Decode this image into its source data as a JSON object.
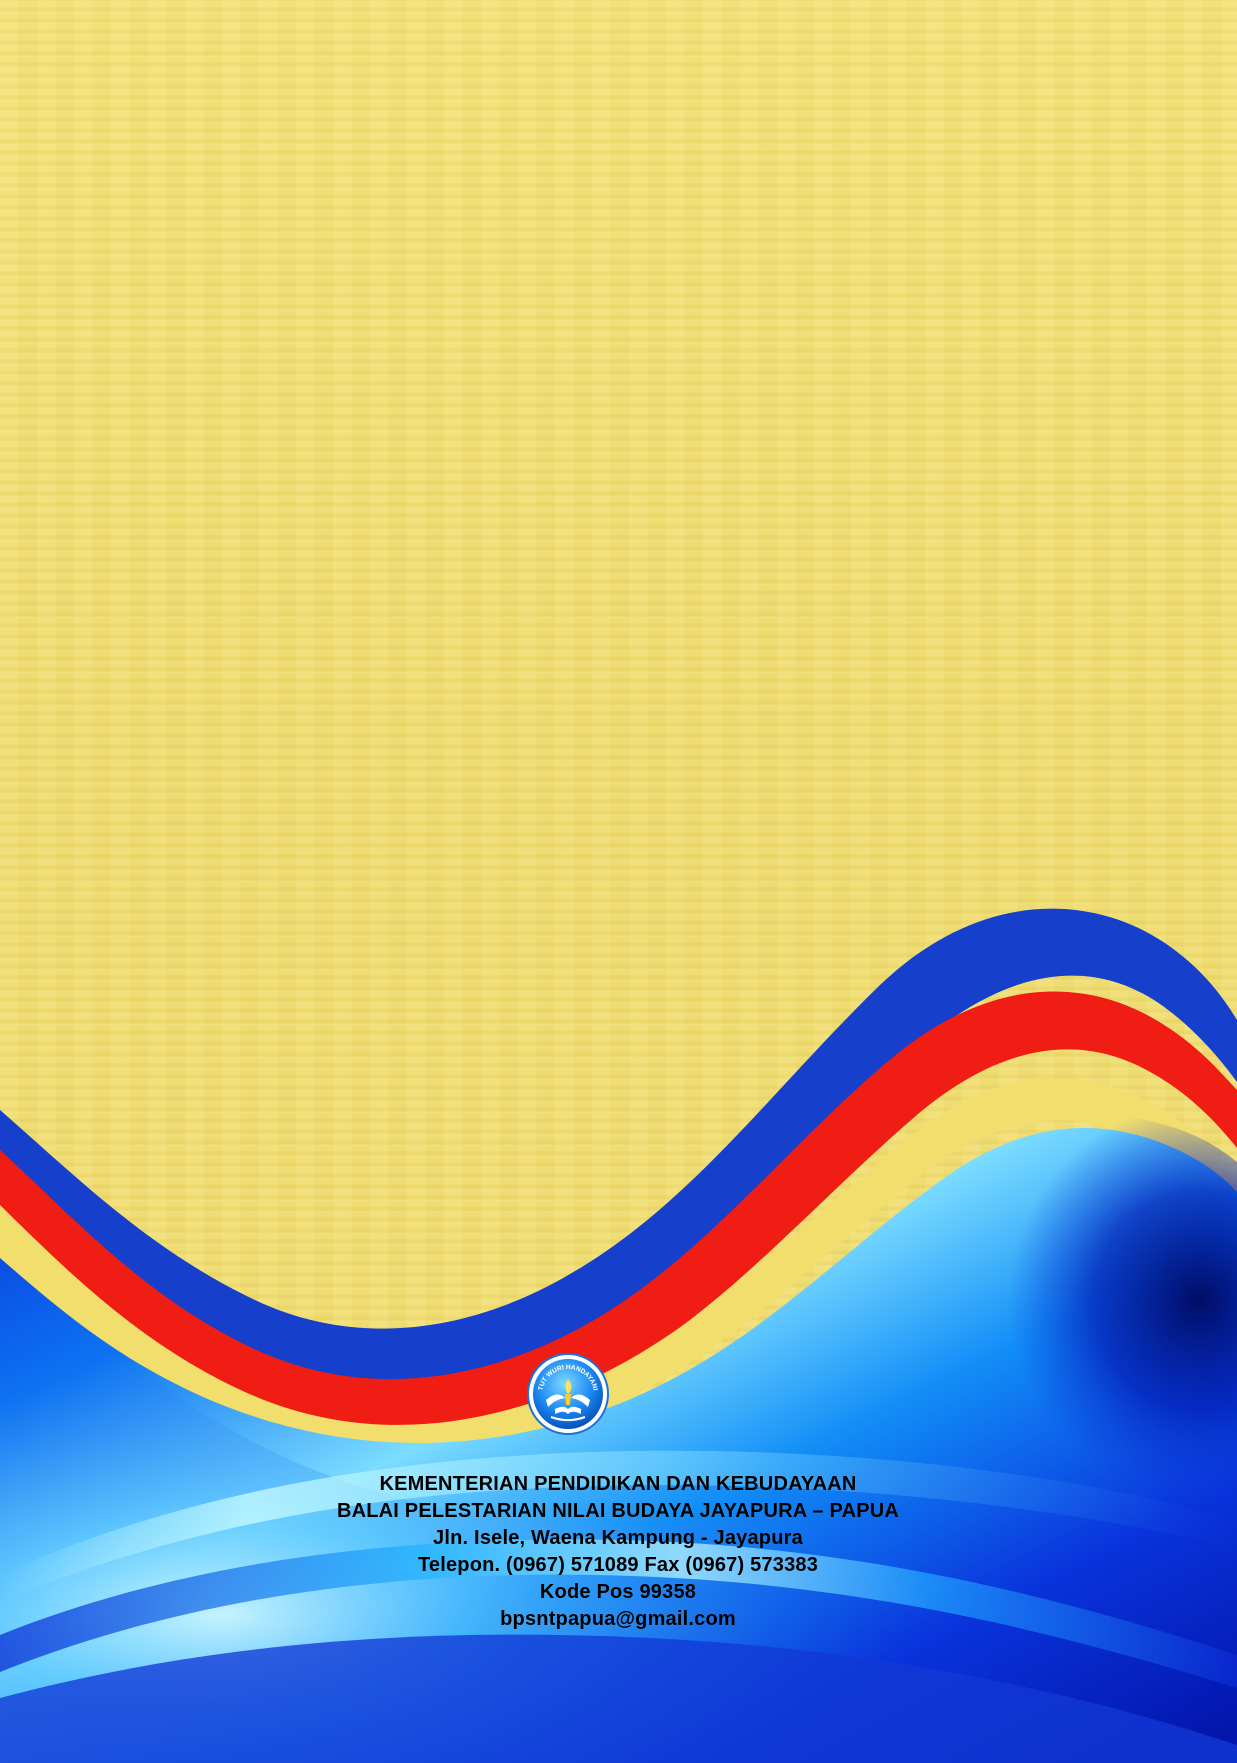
{
  "footer": {
    "org_line_1": "KEMENTERIAN PENDIDIKAN DAN KEBUDAYAAN",
    "org_line_2": "BALAI PELESTARIAN NILAI BUDAYA JAYAPURA – PAPUA",
    "address": "Jln. Isele, Waena Kampung - Jayapura",
    "phone_fax": "Telepon. (0967) 571089 Fax (0967) 573383",
    "postal_code": "Kode Pos 99358",
    "email": "bpsntpapua@gmail.com"
  },
  "logo": {
    "name": "tut-wuri-handayani-emblem",
    "motto": "TUT WURI HANDAYANI"
  },
  "colors": {
    "background_yellow": "#f1de6c",
    "stripe_blue": "#163fcb",
    "stripe_red": "#ef1d13",
    "wave_blue_dark": "#0410b8",
    "wave_blue_light": "#7edcff"
  }
}
